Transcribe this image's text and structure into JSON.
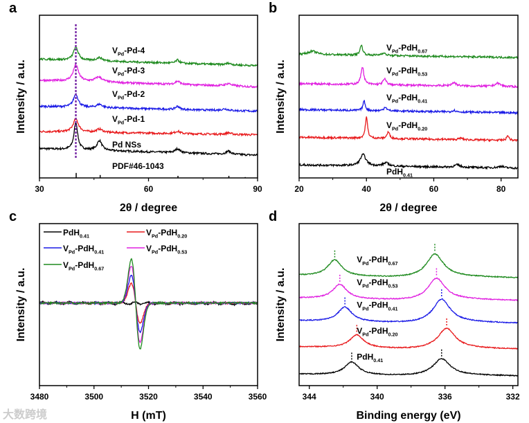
{
  "watermark": "大数跨境",
  "chart_data": [
    {
      "panel": "a",
      "type": "line",
      "xlabel": "2θ / degree",
      "ylabel": "Intensity / a.u.",
      "xlim": [
        30,
        90
      ],
      "ylim": [
        0,
        1
      ],
      "xticks": [
        "30",
        "60",
        "90"
      ],
      "xtickvals": [
        30,
        60,
        90
      ],
      "minor": [
        45,
        75
      ],
      "reference": {
        "label": "PDF#46-1043",
        "lines": [
          40.1,
          46.7,
          68.1,
          82.1,
          86.6
        ],
        "heights": [
          0.12,
          0.07,
          0.05,
          0.05,
          0.02
        ]
      },
      "marker_line": {
        "x": 40,
        "color": "#7b2fa8"
      },
      "series": [
        {
          "name": "Pd NSs",
          "label": [
            [
              "Pd NSs",
              0
            ]
          ],
          "color": "#000000",
          "offset": 0.18,
          "slope": -0.04,
          "peaks": [
            [
              40,
              0.17,
              0.6
            ],
            [
              46.5,
              0.06,
              0.8
            ],
            [
              68,
              0.025,
              0.8
            ],
            [
              82,
              0.02,
              0.8
            ]
          ]
        },
        {
          "name": "VPd-Pd-1",
          "label": [
            [
              "V",
              0
            ],
            [
              "Pd",
              1
            ],
            [
              "-Pd-1",
              0
            ]
          ],
          "color": "#e8191b",
          "offset": 0.285,
          "slope": -0.02,
          "peaks": [
            [
              40,
              0.08,
              0.9
            ],
            [
              46.5,
              0.02,
              1
            ],
            [
              68,
              0.015,
              0.8
            ],
            [
              82,
              0.01,
              0.8
            ]
          ]
        },
        {
          "name": "VPd-Pd-2",
          "label": [
            [
              "V",
              0
            ],
            [
              "Pd",
              1
            ],
            [
              "-Pd-2",
              0
            ]
          ],
          "color": "#1a1ae6",
          "offset": 0.44,
          "slope": -0.03,
          "peaks": [
            [
              40,
              0.08,
              0.8
            ],
            [
              46.5,
              0.02,
              1
            ],
            [
              68,
              0.02,
              0.6
            ],
            [
              81,
              0.01,
              1
            ]
          ]
        },
        {
          "name": "VPd-Pd-3",
          "label": [
            [
              "V",
              0
            ],
            [
              "Pd",
              1
            ],
            [
              "-Pd-3",
              0
            ]
          ],
          "color": "#e020e0",
          "offset": 0.6,
          "slope": -0.04,
          "peaks": [
            [
              40,
              0.1,
              0.9
            ],
            [
              46.3,
              0.03,
              1.2
            ],
            [
              68,
              0.02,
              0.8
            ],
            [
              82,
              0.015,
              1
            ]
          ]
        },
        {
          "name": "VPd-Pd-4",
          "label": [
            [
              "V",
              0
            ],
            [
              "Pd",
              1
            ],
            [
              "-Pd-4",
              0
            ]
          ],
          "color": "#1e8a1e",
          "offset": 0.73,
          "slope": -0.04,
          "peaks": [
            [
              40,
              0.08,
              0.8
            ],
            [
              46.5,
              0.02,
              1
            ],
            [
              68,
              0.02,
              0.6
            ],
            [
              82,
              0.01,
              0.8
            ]
          ]
        }
      ]
    },
    {
      "panel": "b",
      "type": "line",
      "xlabel": "2θ / degree",
      "ylabel": "Intensity / a.u.",
      "xlim": [
        20,
        85
      ],
      "ylim": [
        0,
        1
      ],
      "xticks": [
        "20",
        "40",
        "60",
        "80"
      ],
      "xtickvals": [
        20,
        40,
        60,
        80
      ],
      "minor": [
        30,
        50,
        70
      ],
      "series": [
        {
          "name": "PdH0.41",
          "label": [
            [
              "PdH",
              0
            ],
            [
              "0.41",
              1
            ]
          ],
          "color": "#000000",
          "offset": 0.08,
          "slope": -0.02,
          "peaks": [
            [
              39,
              0.07,
              1
            ],
            [
              45.8,
              0.02,
              1
            ],
            [
              67,
              0.015,
              1
            ],
            [
              80,
              0.01,
              1
            ]
          ]
        },
        {
          "name": "VPd-PdH0.20",
          "label": [
            [
              "V",
              0
            ],
            [
              "Pd",
              1
            ],
            [
              "-PdH",
              0
            ],
            [
              "0.20",
              1
            ]
          ],
          "color": "#e8191b",
          "offset": 0.25,
          "slope": -0.02,
          "peaks": [
            [
              40,
              0.13,
              0.4
            ],
            [
              46.5,
              0.04,
              0.5
            ],
            [
              68,
              0.01,
              0.6
            ],
            [
              82,
              0.03,
              0.4
            ]
          ]
        },
        {
          "name": "VPd-PdH0.41",
          "label": [
            [
              "V",
              0
            ],
            [
              "Pd",
              1
            ],
            [
              "-PdH",
              0
            ],
            [
              "0.41",
              1
            ]
          ],
          "color": "#1a1ae6",
          "offset": 0.42,
          "slope": -0.02,
          "peaks": [
            [
              39.3,
              0.06,
              0.4
            ],
            [
              45.6,
              0.025,
              0.5
            ],
            [
              66,
              0.01,
              0.6
            ]
          ]
        },
        {
          "name": "VPd-PdH0.53",
          "label": [
            [
              "V",
              0
            ],
            [
              "Pd",
              1
            ],
            [
              "-PdH",
              0
            ],
            [
              "0.53",
              1
            ]
          ],
          "color": "#e020e0",
          "offset": 0.58,
          "slope": -0.02,
          "peaks": [
            [
              38.8,
              0.11,
              0.5
            ],
            [
              45.4,
              0.035,
              0.6
            ],
            [
              66,
              0.02,
              0.8
            ],
            [
              79,
              0.02,
              1
            ]
          ]
        },
        {
          "name": "VPd-PdH0.67",
          "label": [
            [
              "V",
              0
            ],
            [
              "Pd",
              1
            ],
            [
              "-PdH",
              0
            ],
            [
              "0.67",
              1
            ]
          ],
          "color": "#1e8a1e",
          "offset": 0.76,
          "slope": -0.02,
          "peaks": [
            [
              38.5,
              0.06,
              0.5
            ],
            [
              24,
              0.02,
              1.5
            ],
            [
              45,
              0.015,
              0.8
            ]
          ]
        }
      ]
    },
    {
      "panel": "c",
      "type": "line",
      "xlabel": "H (mT)",
      "ylabel": "Intensity / a.u.",
      "xlim": [
        3480,
        3560
      ],
      "ylim": [
        0,
        1
      ],
      "xticks": [
        "3480",
        "3500",
        "3520",
        "3540",
        "3560"
      ],
      "xtickvals": [
        3480,
        3500,
        3520,
        3540,
        3560
      ],
      "minor": [
        3490,
        3510,
        3530,
        3550
      ],
      "legend": "top-left",
      "series": [
        {
          "name": "PdH0.41",
          "label": [
            [
              "PdH",
              0
            ],
            [
              "0.41",
              1
            ]
          ],
          "color": "#000000",
          "offset": 0.51,
          "amp": 0.0
        },
        {
          "name": "VPd-PdH0.20",
          "label": [
            [
              "V",
              0
            ],
            [
              "Pd",
              1
            ],
            [
              "-PdH",
              0
            ],
            [
              "0.20",
              1
            ]
          ],
          "color": "#e8191b",
          "offset": 0.51,
          "amp": 0.12
        },
        {
          "name": "VPd-PdH0.41",
          "label": [
            [
              "V",
              0
            ],
            [
              "Pd",
              1
            ],
            [
              "-PdH",
              0
            ],
            [
              "0.41",
              1
            ]
          ],
          "color": "#1a1ae6",
          "offset": 0.51,
          "amp": 0.17
        },
        {
          "name": "VPd-PdH0.53",
          "label": [
            [
              "V",
              0
            ],
            [
              "Pd",
              1
            ],
            [
              "-PdH",
              0
            ],
            [
              "0.53",
              1
            ]
          ],
          "color": "#e020e0",
          "offset": 0.51,
          "amp": 0.23
        },
        {
          "name": "VPd-PdH0.67",
          "label": [
            [
              "V",
              0
            ],
            [
              "Pd",
              1
            ],
            [
              "-PdH",
              0
            ],
            [
              "0.67",
              1
            ]
          ],
          "color": "#1e8a1e",
          "offset": 0.51,
          "amp": 0.27
        }
      ]
    },
    {
      "panel": "d",
      "type": "line",
      "xlabel": "Binding energy (eV)",
      "ylabel": "Intensity / a.u.",
      "xlim": [
        344.6,
        331.7
      ],
      "ylim": [
        0,
        1
      ],
      "xticks": [
        "344",
        "340",
        "336",
        "332"
      ],
      "xtickvals": [
        344,
        340,
        336,
        332
      ],
      "minor": [
        342,
        338,
        334
      ],
      "series": [
        {
          "name": "PdH0.41",
          "label": [
            [
              "PdH",
              0
            ],
            [
              "0.41",
              1
            ]
          ],
          "color": "#000000",
          "offset": 0.05,
          "step": 0.02,
          "peaks": [
            [
              341.5,
              0.08,
              0.5
            ],
            [
              336.2,
              0.1,
              0.6
            ]
          ]
        },
        {
          "name": "VPd-PdH0.20",
          "label": [
            [
              "V",
              0
            ],
            [
              "Pd",
              1
            ],
            [
              "-PdH",
              0
            ],
            [
              "0.20",
              1
            ]
          ],
          "color": "#e8191b",
          "offset": 0.21,
          "step": 0.03,
          "peaks": [
            [
              341.2,
              0.08,
              0.5
            ],
            [
              335.9,
              0.12,
              0.6
            ]
          ]
        },
        {
          "name": "VPd-PdH0.41",
          "label": [
            [
              "V",
              0
            ],
            [
              "Pd",
              1
            ],
            [
              "-PdH",
              0
            ],
            [
              "0.41",
              1
            ]
          ],
          "color": "#1a1ae6",
          "offset": 0.37,
          "step": 0.03,
          "peaks": [
            [
              341.9,
              0.09,
              0.5
            ],
            [
              336.2,
              0.14,
              0.6
            ]
          ]
        },
        {
          "name": "VPd-PdH0.53",
          "label": [
            [
              "V",
              0
            ],
            [
              "Pd",
              1
            ],
            [
              "-PdH",
              0
            ],
            [
              "0.53",
              1
            ]
          ],
          "color": "#e020e0",
          "offset": 0.51,
          "step": 0.03,
          "peaks": [
            [
              342.2,
              0.09,
              0.5
            ],
            [
              336.5,
              0.13,
              0.6
            ]
          ]
        },
        {
          "name": "VPd-PdH0.67",
          "label": [
            [
              "V",
              0
            ],
            [
              "Pd",
              1
            ],
            [
              "-PdH",
              0
            ],
            [
              "0.67",
              1
            ]
          ],
          "color": "#1e8a1e",
          "offset": 0.65,
          "step": 0.03,
          "peaks": [
            [
              342.5,
              0.1,
              0.5
            ],
            [
              336.6,
              0.14,
              0.6
            ]
          ]
        }
      ]
    }
  ]
}
